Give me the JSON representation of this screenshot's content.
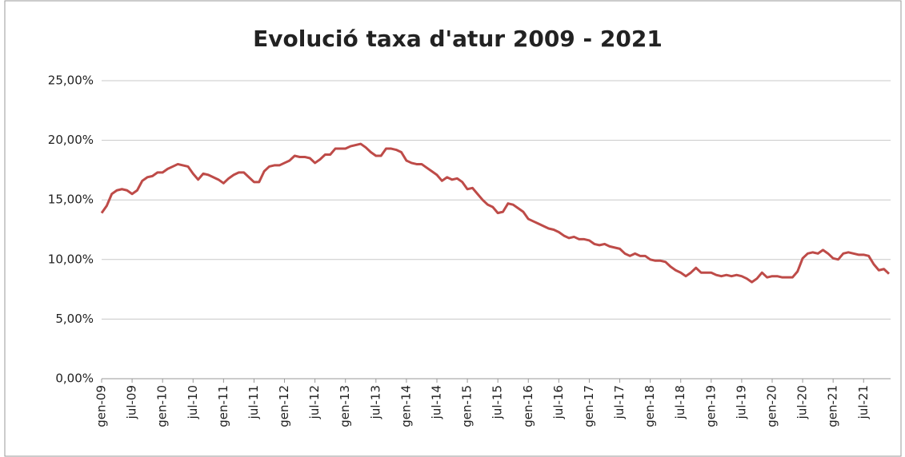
{
  "chart_data": {
    "type": "line",
    "title": "Evolució taxa d'atur 2009 - 2021",
    "categories": [
      "gen-09",
      null,
      null,
      null,
      null,
      null,
      "jul-09",
      null,
      null,
      null,
      null,
      null,
      "gen-10",
      null,
      null,
      null,
      null,
      null,
      "jul-10",
      null,
      null,
      null,
      null,
      null,
      "gen-11",
      null,
      null,
      null,
      null,
      null,
      "jul-11",
      null,
      null,
      null,
      null,
      null,
      "gen-12",
      null,
      null,
      null,
      null,
      null,
      "jul-12",
      null,
      null,
      null,
      null,
      null,
      "gen-13",
      null,
      null,
      null,
      null,
      null,
      "jul-13",
      null,
      null,
      null,
      null,
      null,
      "gen-14",
      null,
      null,
      null,
      null,
      null,
      "jul-14",
      null,
      null,
      null,
      null,
      null,
      "gen-15",
      null,
      null,
      null,
      null,
      null,
      "jul-15",
      null,
      null,
      null,
      null,
      null,
      "gen-16",
      null,
      null,
      null,
      null,
      null,
      "jul-16",
      null,
      null,
      null,
      null,
      null,
      "gen-17",
      null,
      null,
      null,
      null,
      null,
      "jul-17",
      null,
      null,
      null,
      null,
      null,
      "gen-18",
      null,
      null,
      null,
      null,
      null,
      "jul-18",
      null,
      null,
      null,
      null,
      null,
      "gen-19",
      null,
      null,
      null,
      null,
      null,
      "jul-19",
      null,
      null,
      null,
      null,
      null,
      "gen-20",
      null,
      null,
      null,
      null,
      null,
      "jul-20",
      null,
      null,
      null,
      null,
      null,
      "gen-21",
      null,
      null,
      null,
      null,
      null,
      "jul-21",
      null,
      null,
      null,
      null,
      null
    ],
    "series": [
      {
        "color": "#be4b48",
        "values": [
          13.9,
          14.5,
          15.5,
          15.8,
          15.9,
          15.8,
          15.5,
          15.8,
          16.6,
          16.9,
          17.0,
          17.3,
          17.3,
          17.6,
          17.8,
          18.0,
          17.9,
          17.8,
          17.2,
          16.7,
          17.2,
          17.1,
          16.9,
          16.7,
          16.4,
          16.8,
          17.1,
          17.3,
          17.3,
          16.9,
          16.5,
          16.5,
          17.4,
          17.8,
          17.9,
          17.9,
          18.1,
          18.3,
          18.7,
          18.6,
          18.6,
          18.5,
          18.1,
          18.4,
          18.8,
          18.8,
          19.3,
          19.3,
          19.3,
          19.5,
          19.6,
          19.7,
          19.4,
          19.0,
          18.7,
          18.7,
          19.3,
          19.3,
          19.2,
          19.0,
          18.3,
          18.1,
          18.0,
          18.0,
          17.7,
          17.4,
          17.1,
          16.6,
          16.9,
          16.7,
          16.8,
          16.5,
          15.9,
          16.0,
          15.5,
          15.0,
          14.6,
          14.4,
          13.9,
          14.0,
          14.7,
          14.6,
          14.3,
          14.0,
          13.4,
          13.2,
          13.0,
          12.8,
          12.6,
          12.5,
          12.3,
          12.0,
          11.8,
          11.9,
          11.7,
          11.7,
          11.6,
          11.3,
          11.2,
          11.3,
          11.1,
          11.0,
          10.9,
          10.5,
          10.3,
          10.5,
          10.3,
          10.3,
          10.0,
          9.9,
          9.9,
          9.8,
          9.4,
          9.1,
          8.9,
          8.6,
          8.9,
          9.3,
          8.9,
          8.9,
          8.9,
          8.7,
          8.6,
          8.7,
          8.6,
          8.7,
          8.6,
          8.4,
          8.1,
          8.4,
          8.9,
          8.5,
          8.6,
          8.6,
          8.5,
          8.5,
          8.5,
          9.0,
          10.1,
          10.5,
          10.6,
          10.5,
          10.8,
          10.5,
          10.1,
          10.0,
          10.5,
          10.6,
          10.5,
          10.4,
          10.4,
          10.3,
          9.6,
          9.1,
          9.2,
          8.8
        ]
      }
    ],
    "ylim": [
      0,
      25
    ],
    "yticks": [
      {
        "value": 0,
        "label": "0,00%"
      },
      {
        "value": 5,
        "label": "5,00%"
      },
      {
        "value": 10,
        "label": "10,00%"
      },
      {
        "value": 15,
        "label": "15,00%"
      },
      {
        "value": 20,
        "label": "20,00%"
      },
      {
        "value": 25,
        "label": "25,00%"
      }
    ],
    "grid": true
  }
}
